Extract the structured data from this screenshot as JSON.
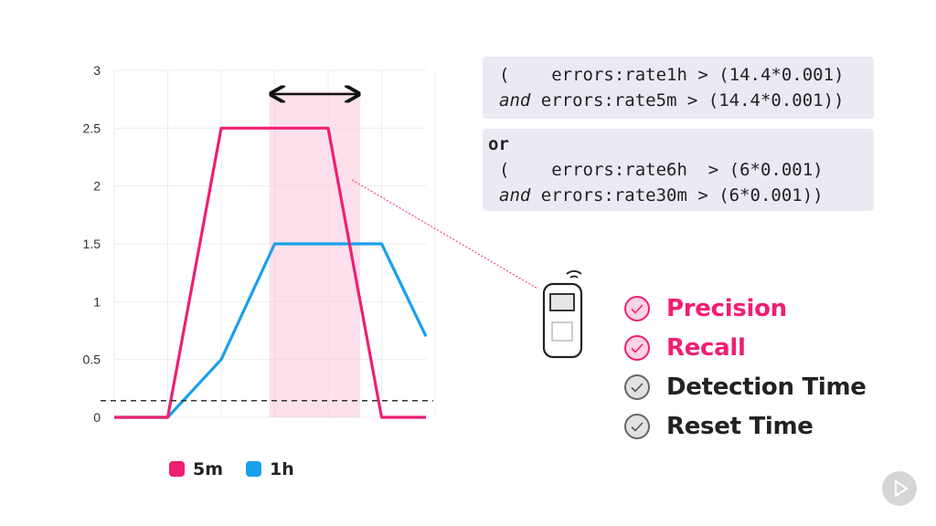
{
  "chart_data": {
    "type": "line",
    "x": [
      0,
      1,
      2,
      3,
      4,
      5,
      6
    ],
    "ylim": [
      0,
      3
    ],
    "yticks": [
      "0",
      "0.5",
      "1",
      "1.5",
      "2",
      "2.5",
      "3"
    ],
    "series": [
      {
        "name": "5m",
        "color": "#ef1f72",
        "points": [
          [
            0,
            0
          ],
          [
            1,
            0
          ],
          [
            2,
            2.5
          ],
          [
            3,
            2.5
          ],
          [
            4,
            2.5
          ],
          [
            5,
            0
          ],
          [
            6,
            0
          ]
        ]
      },
      {
        "name": "1h",
        "color": "#1aa0ec",
        "points": [
          [
            0,
            0
          ],
          [
            1,
            0
          ],
          [
            2,
            0.5
          ],
          [
            3,
            1.5
          ],
          [
            4,
            1.5
          ],
          [
            5,
            1.5
          ],
          [
            6,
            0.7
          ]
        ]
      }
    ],
    "threshold": 0.144,
    "highlight_range": [
      2.9,
      4.6
    ],
    "legend": [
      "5m",
      "1h"
    ]
  },
  "code": {
    "block1": {
      "line1_open": "(    ",
      "line1_expr": "errors:rate1h > (14.4*0.001)",
      "line2_and": "and",
      "line2_expr": " errors:rate5m > (14.4*0.001))"
    },
    "block2": {
      "or": "or",
      "line1_open": "(    ",
      "line1_expr": "errors:rate6h  > (6*0.001)",
      "line2_and": "and",
      "line2_expr": " errors:rate30m > (6*0.001))"
    }
  },
  "checklist": [
    {
      "label": "Precision",
      "active": true
    },
    {
      "label": "Recall",
      "active": true
    },
    {
      "label": "Detection Time",
      "active": false
    },
    {
      "label": "Reset Time",
      "active": false
    }
  ],
  "colors": {
    "accent": "#ef1f72",
    "blue": "#1aa0ec",
    "inactive": "#222222"
  },
  "icons": {
    "pager": "pager-icon",
    "check": "check-circle-icon",
    "play": "play-icon"
  }
}
